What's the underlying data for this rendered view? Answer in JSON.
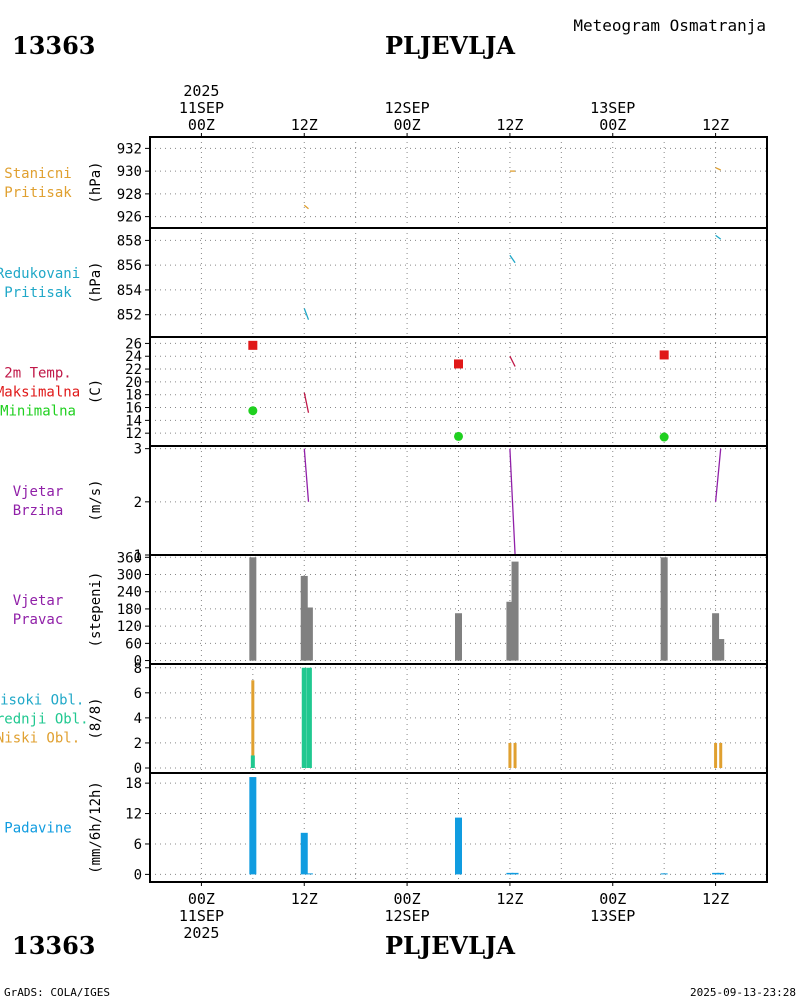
{
  "header": {
    "station_id": "13363",
    "station_name": "PLJEVLJA",
    "subtitle": "Meteogram Osmatranja"
  },
  "footer": {
    "credit": "GrADS: COLA/IGES",
    "timestamp": "2025-09-13-23:28"
  },
  "colors": {
    "orange": "#e0a030",
    "cyan": "#20a8c8",
    "red": "#e01818",
    "green": "#20d020",
    "purple": "#9020a8",
    "magenta": "#c01848",
    "gray": "#808080",
    "teal": "#20c890",
    "blue": "#109ce0",
    "axis": "#000000"
  },
  "chart_data": {
    "type": "meteogram",
    "x_axis": {
      "unit": "hours since 2025-09-11 00Z",
      "range": [
        -6,
        66
      ],
      "ticks": [
        {
          "h": 0,
          "top": [
            "2025",
            "11SEP",
            "00Z"
          ],
          "bottom": [
            "00Z",
            "11SEP",
            "2025"
          ]
        },
        {
          "h": 12,
          "top": [
            "12Z"
          ],
          "bottom": [
            "12Z"
          ]
        },
        {
          "h": 24,
          "top": [
            "12SEP",
            "00Z"
          ],
          "bottom": [
            "00Z",
            "12SEP"
          ]
        },
        {
          "h": 36,
          "top": [
            "12Z"
          ],
          "bottom": [
            "12Z"
          ]
        },
        {
          "h": 48,
          "top": [
            "13SEP",
            "00Z"
          ],
          "bottom": [
            "00Z",
            "13SEP"
          ]
        },
        {
          "h": 60,
          "top": [
            "12Z"
          ],
          "bottom": [
            "12Z"
          ]
        }
      ]
    },
    "panels": [
      {
        "id": "station-pressure",
        "labels": [
          {
            "text": "Stanicni",
            "color": "#e0a030"
          },
          {
            "text": "Pritisak",
            "color": "#e0a030"
          }
        ],
        "ylabel": "(hPa)",
        "ylim": [
          925,
          933
        ],
        "yticks": [
          926,
          928,
          930,
          932
        ],
        "type": "line",
        "series": [
          {
            "name": "Stanicni Pritisak",
            "color": "#e0a030",
            "segments": [
              [
                [
                  12,
                  927.0
                ],
                [
                  12.5,
                  926.7
                ]
              ],
              [
                [
                  36,
                  930.0
                ],
                [
                  36.6,
                  930.0
                ]
              ],
              [
                [
                  60,
                  930.3
                ],
                [
                  60.6,
                  930.1
                ]
              ]
            ]
          }
        ]
      },
      {
        "id": "reduced-pressure",
        "labels": [
          {
            "text": "Redukovani",
            "color": "#20a8c8"
          },
          {
            "text": "Pritisak",
            "color": "#20a8c8"
          }
        ],
        "ylabel": "(hPa)",
        "ylim": [
          850.2,
          859.0
        ],
        "yticks": [
          852,
          854,
          856,
          858
        ],
        "type": "line",
        "series": [
          {
            "name": "Redukovani Pritisak",
            "color": "#20a8c8",
            "segments": [
              [
                [
                  12,
                  852.5
                ],
                [
                  12.5,
                  851.6
                ]
              ],
              [
                [
                  36,
                  856.8
                ],
                [
                  36.6,
                  856.2
                ]
              ],
              [
                [
                  60,
                  858.4
                ],
                [
                  60.6,
                  858.1
                ]
              ]
            ]
          }
        ]
      },
      {
        "id": "temperature",
        "labels": [
          {
            "text": "2m Temp.",
            "color": "#c01848"
          },
          {
            "text": "Maksimalna",
            "color": "#e01818"
          },
          {
            "text": "Minimalna",
            "color": "#20d020"
          }
        ],
        "ylabel": "(C)",
        "ylim": [
          10,
          27
        ],
        "yticks": [
          12,
          14,
          16,
          18,
          20,
          22,
          24,
          26
        ],
        "type": "line+markers",
        "series": [
          {
            "name": "2m Temp.",
            "color": "#c01848",
            "segments": [
              [
                [
                  12,
                  18.3
                ],
                [
                  12.5,
                  15.2
                ]
              ],
              [
                [
                  36,
                  24.0
                ],
                [
                  36.6,
                  22.4
                ]
              ]
            ]
          }
        ],
        "markers": [
          {
            "name": "Maksimalna",
            "shape": "square",
            "color": "#e01818",
            "points": [
              [
                6,
                25.7
              ],
              [
                30,
                22.8
              ],
              [
                54,
                24.2
              ]
            ]
          },
          {
            "name": "Minimalna",
            "shape": "circle",
            "color": "#20d020",
            "points": [
              [
                6,
                15.5
              ],
              [
                30,
                11.5
              ],
              [
                54,
                11.4
              ]
            ]
          }
        ]
      },
      {
        "id": "wind-speed",
        "labels": [
          {
            "text": "Vjetar",
            "color": "#9020a8"
          },
          {
            "text": "Brzina",
            "color": "#9020a8"
          }
        ],
        "ylabel": "(m/s)",
        "ylim": [
          1,
          3.05
        ],
        "yticks": [
          1,
          2,
          3
        ],
        "type": "line",
        "series": [
          {
            "name": "Vjetar Brzina",
            "color": "#9020a8",
            "segments": [
              [
                [
                  12,
                  3.0
                ],
                [
                  12.5,
                  2.0
                ]
              ],
              [
                [
                  36,
                  3.0
                ],
                [
                  36.3,
                  2.0
                ],
                [
                  36.6,
                  1.0
                ]
              ],
              [
                [
                  60,
                  2.0
                ],
                [
                  60.6,
                  3.0
                ]
              ]
            ]
          }
        ]
      },
      {
        "id": "wind-direction",
        "labels": [
          {
            "text": "Vjetar",
            "color": "#9020a8"
          },
          {
            "text": "Pravac",
            "color": "#9020a8"
          }
        ],
        "ylabel": "(stepeni)",
        "ylim": [
          -12,
          368
        ],
        "yticks": [
          0,
          60,
          120,
          180,
          240,
          300,
          360
        ],
        "type": "bar",
        "bars": [
          {
            "h": 6,
            "value": 360,
            "color": "#808080"
          },
          {
            "h": 12,
            "value": 295,
            "color": "#808080"
          },
          {
            "h": 12.6,
            "value": 185,
            "color": "#808080"
          },
          {
            "h": 30,
            "value": 165,
            "color": "#808080"
          },
          {
            "h": 36,
            "value": 205,
            "color": "#808080"
          },
          {
            "h": 36.6,
            "value": 345,
            "color": "#808080"
          },
          {
            "h": 54,
            "value": 360,
            "color": "#808080"
          },
          {
            "h": 60,
            "value": 165,
            "color": "#808080"
          },
          {
            "h": 60.6,
            "value": 75,
            "color": "#808080"
          }
        ]
      },
      {
        "id": "cloud-cover",
        "labels": [
          {
            "text": "Visoki Obl.",
            "color": "#20a8c8"
          },
          {
            "text": "Srednji Obl.",
            "color": "#20c890"
          },
          {
            "text": "Niski Obl.",
            "color": "#e0a030"
          }
        ],
        "ylabel": "(8/8)",
        "ylim": [
          -0.4,
          8.3
        ],
        "yticks": [
          0,
          2,
          4,
          6,
          8
        ],
        "type": "bar",
        "bars": [
          {
            "h": 6,
            "value": 7,
            "color": "#e0a030",
            "width": 3
          },
          {
            "h": 6,
            "value": 1,
            "color": "#20c890",
            "width": 4
          },
          {
            "h": 12,
            "value": 8,
            "color": "#20c890",
            "width": 5
          },
          {
            "h": 12.6,
            "value": 8,
            "color": "#20c890",
            "width": 5
          },
          {
            "h": 36,
            "value": 2,
            "color": "#e0a030",
            "width": 3
          },
          {
            "h": 36.6,
            "value": 2,
            "color": "#e0a030",
            "width": 3
          },
          {
            "h": 60,
            "value": 2,
            "color": "#e0a030",
            "width": 3
          },
          {
            "h": 60.6,
            "value": 2,
            "color": "#e0a030",
            "width": 3
          }
        ]
      },
      {
        "id": "precipitation",
        "labels": [
          {
            "text": "Padavine",
            "color": "#109ce0"
          }
        ],
        "ylabel": "(mm/6h/12h)",
        "ylim": [
          -1.5,
          20
        ],
        "yticks": [
          0,
          6,
          12,
          18
        ],
        "type": "bar",
        "bars": [
          {
            "h": 6,
            "value": 19.2,
            "color": "#109ce0"
          },
          {
            "h": 12,
            "value": 8.2,
            "color": "#109ce0"
          },
          {
            "h": 12.6,
            "value": 0.2,
            "color": "#109ce0"
          },
          {
            "h": 30,
            "value": 11.2,
            "color": "#109ce0"
          },
          {
            "h": 36,
            "value": 0.3,
            "color": "#109ce0"
          },
          {
            "h": 36.6,
            "value": 0.3,
            "color": "#109ce0"
          },
          {
            "h": 54,
            "value": 0.2,
            "color": "#109ce0"
          },
          {
            "h": 60,
            "value": 0.3,
            "color": "#109ce0"
          },
          {
            "h": 60.6,
            "value": 0.3,
            "color": "#109ce0"
          }
        ]
      }
    ]
  }
}
